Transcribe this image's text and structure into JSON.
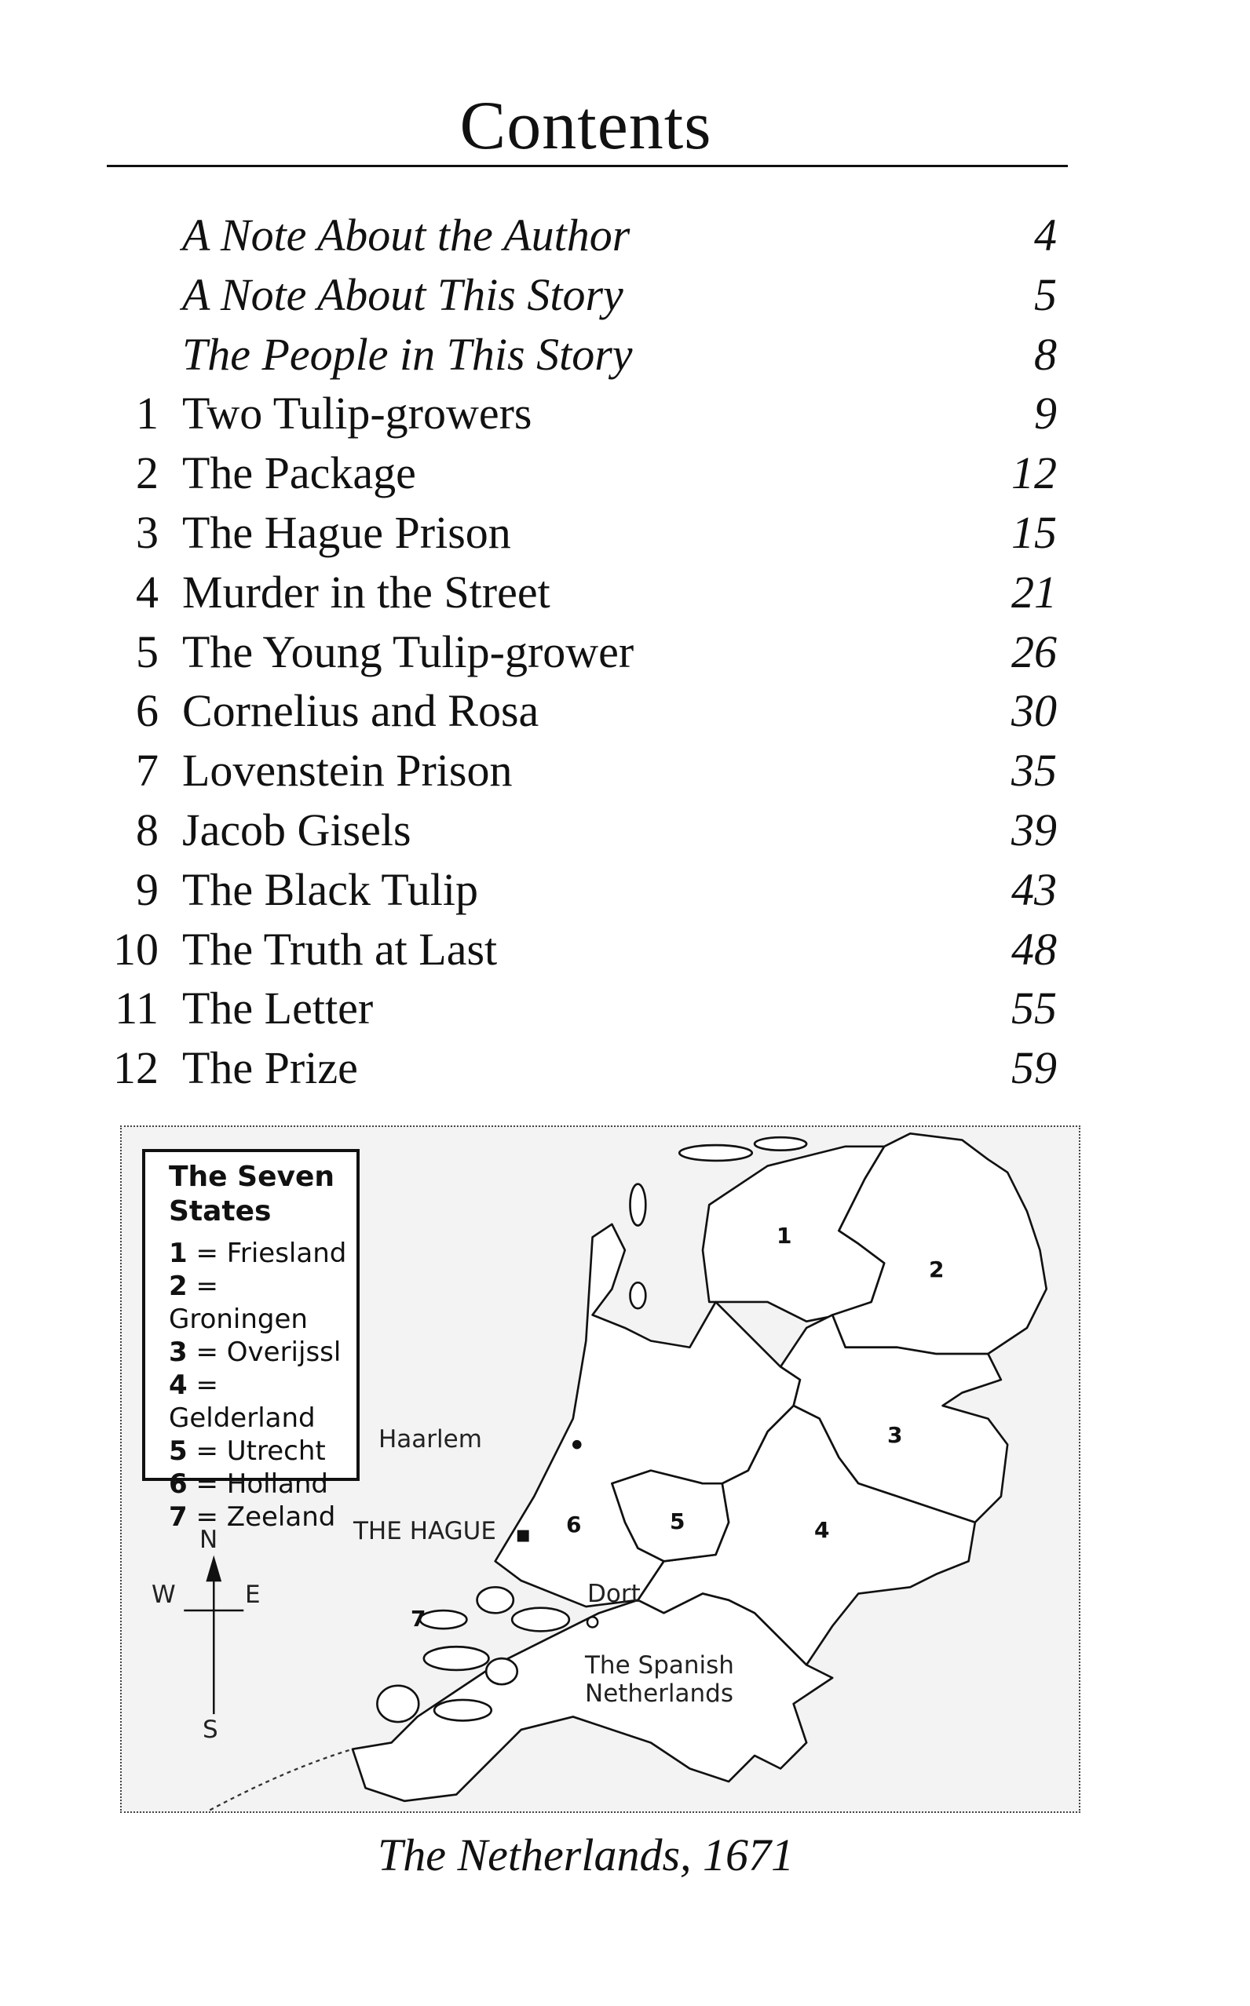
{
  "title": "Contents",
  "toc": [
    {
      "number": "",
      "label": "A Note About the Author",
      "page": "4",
      "italic": true
    },
    {
      "number": "",
      "label": "A Note About This Story",
      "page": "5",
      "italic": true
    },
    {
      "number": "",
      "label": "The People in This Story",
      "page": "8",
      "italic": true
    },
    {
      "number": "1",
      "label": "Two Tulip-growers",
      "page": "9"
    },
    {
      "number": "2",
      "label": "The Package",
      "page": "12"
    },
    {
      "number": "3",
      "label": "The Hague Prison",
      "page": "15"
    },
    {
      "number": "4",
      "label": "Murder in the Street",
      "page": "21"
    },
    {
      "number": "5",
      "label": "The Young Tulip-grower",
      "page": "26"
    },
    {
      "number": "6",
      "label": "Cornelius and Rosa",
      "page": "30"
    },
    {
      "number": "7",
      "label": "Lovenstein Prison",
      "page": "35"
    },
    {
      "number": "8",
      "label": "Jacob Gisels",
      "page": "39"
    },
    {
      "number": "9",
      "label": "The Black Tulip",
      "page": "43"
    },
    {
      "number": "10",
      "label": "The Truth at Last",
      "page": "48"
    },
    {
      "number": "11",
      "label": "The Letter",
      "page": "55"
    },
    {
      "number": "12",
      "label": "The Prize",
      "page": "59"
    }
  ],
  "map": {
    "legend_title": "The Seven States",
    "states": [
      {
        "n": "1",
        "name": "Friesland"
      },
      {
        "n": "2",
        "name": "Groningen"
      },
      {
        "n": "3",
        "name": "Overijssl"
      },
      {
        "n": "4",
        "name": "Gelderland"
      },
      {
        "n": "5",
        "name": "Utrecht"
      },
      {
        "n": "6",
        "name": "Holland"
      },
      {
        "n": "7",
        "name": "Zeeland"
      }
    ],
    "places": {
      "haarlem": "Haarlem",
      "hague": "THE HAGUE",
      "dort": "Dort",
      "spanish1": "The Spanish",
      "spanish2": "Netherlands"
    },
    "compass": {
      "n": "N",
      "s": "S",
      "e": "E",
      "w": "W"
    }
  },
  "caption": "The Netherlands, 1671"
}
